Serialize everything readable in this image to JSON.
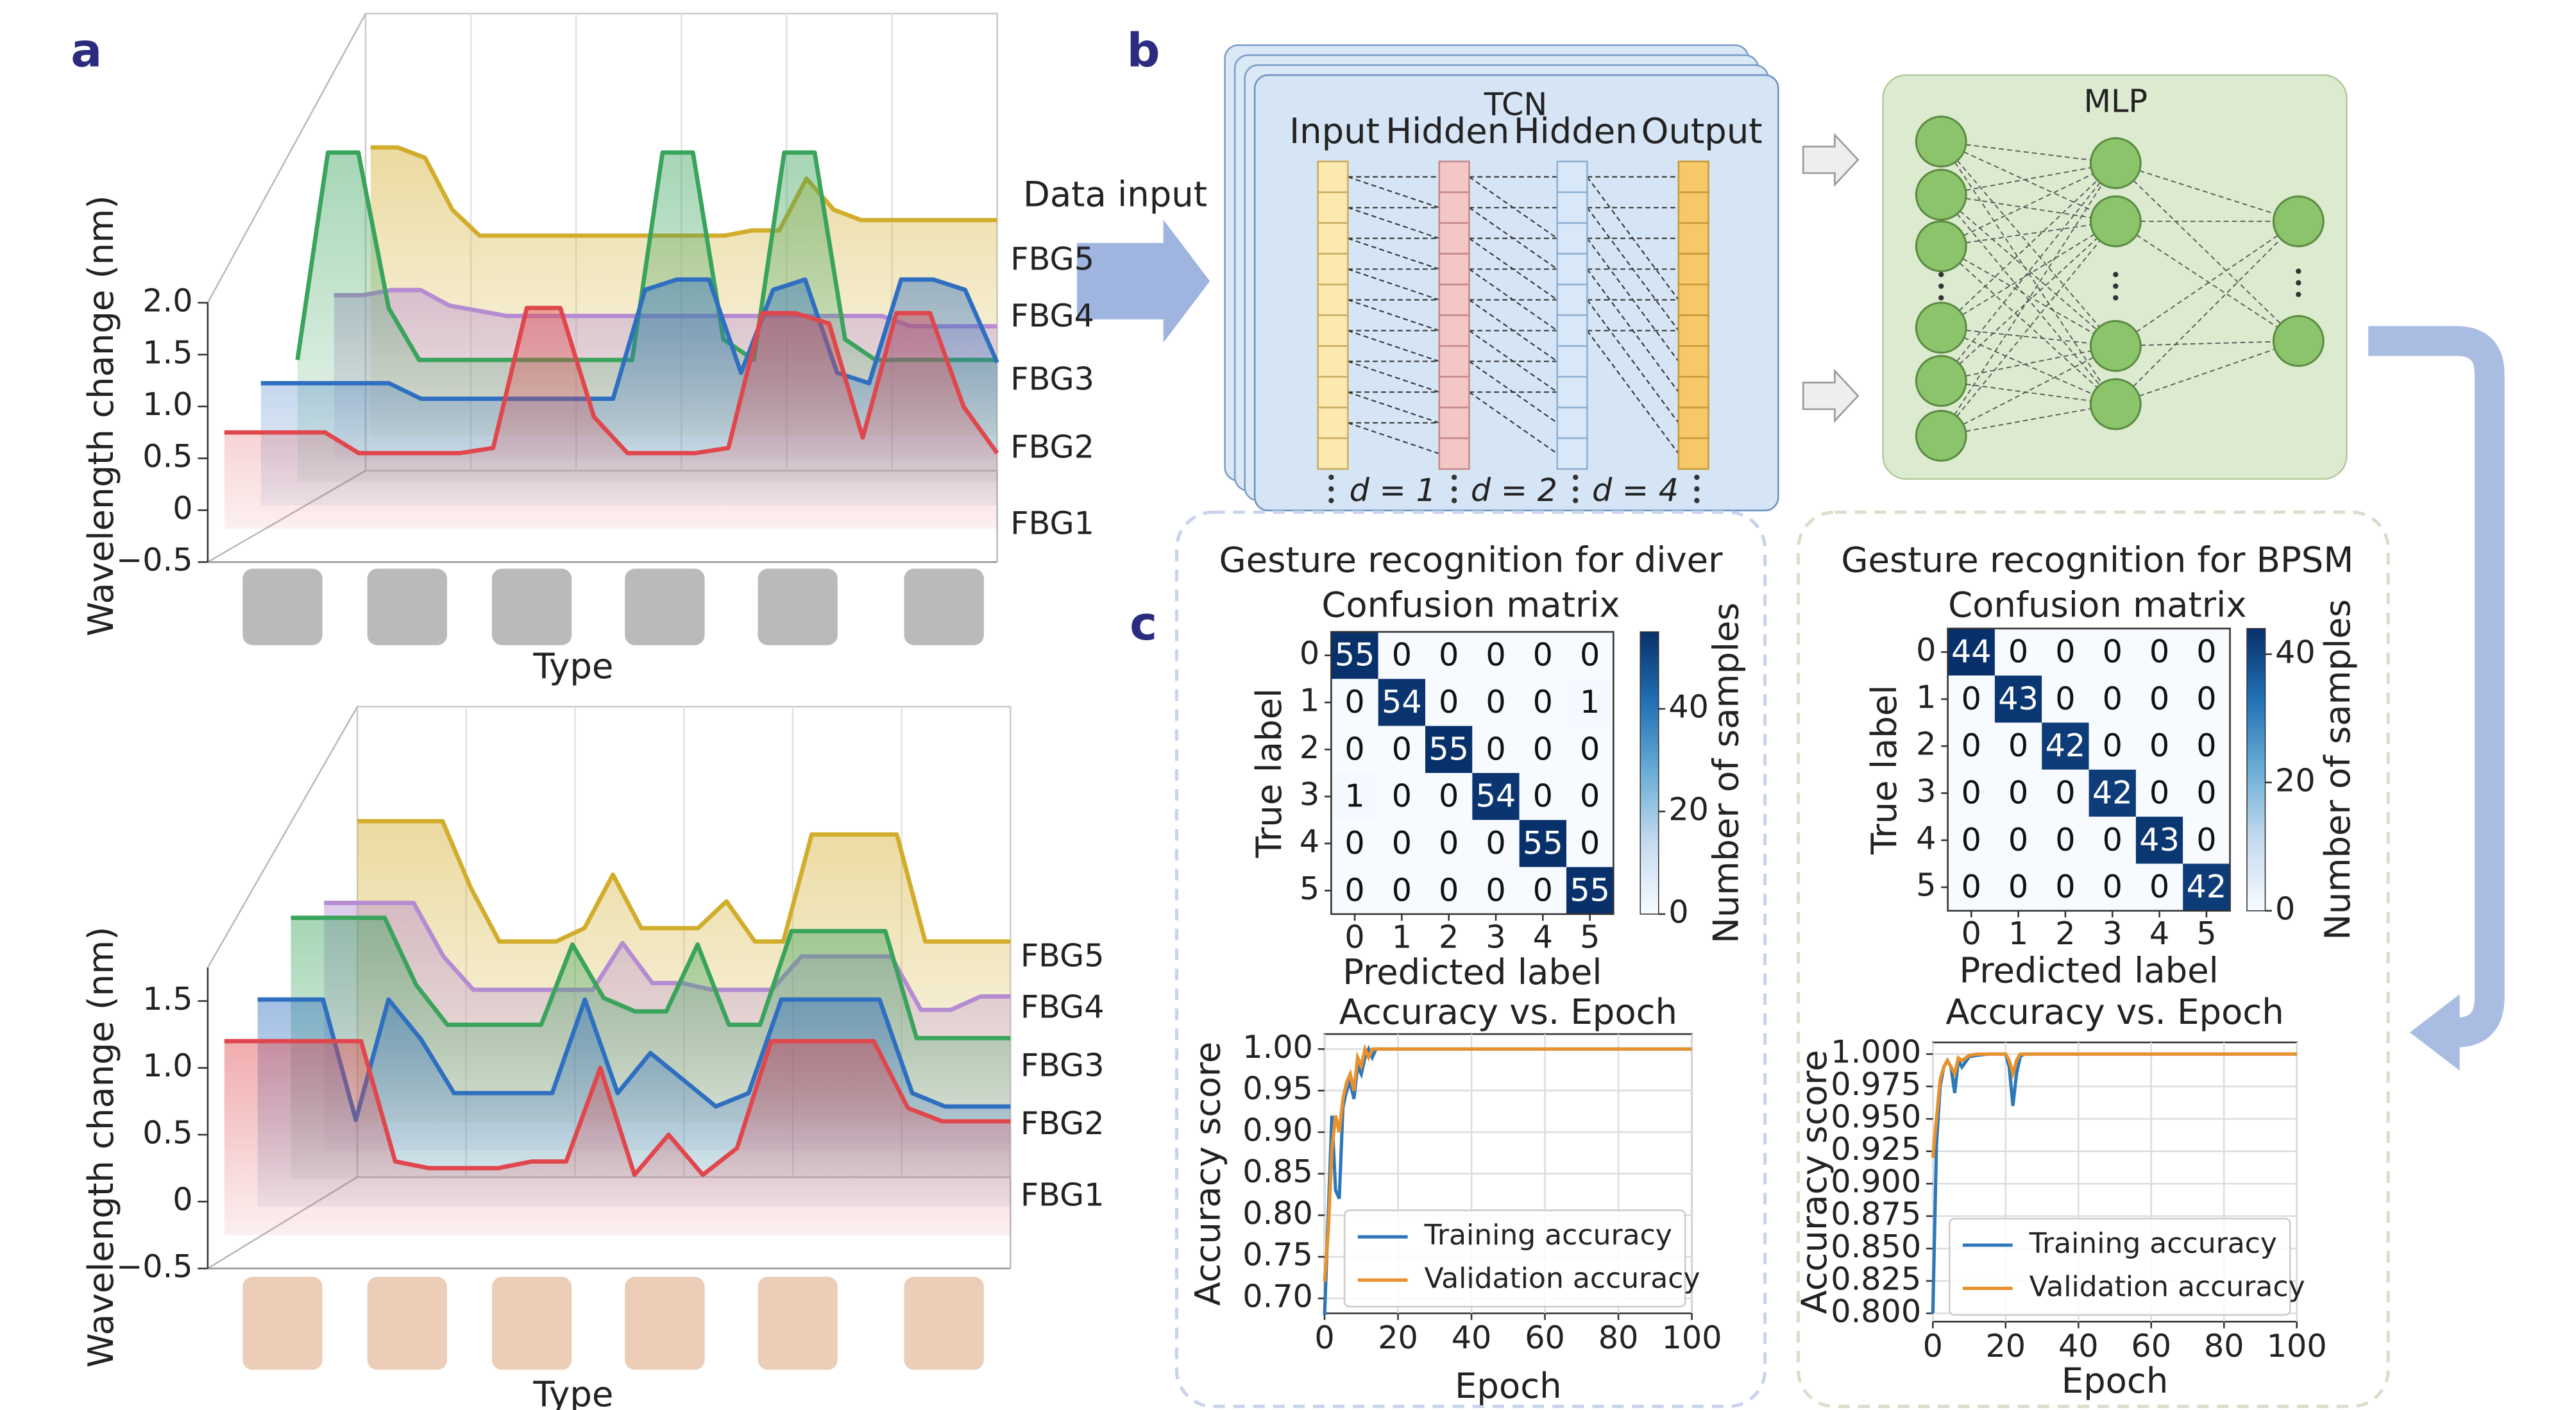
{
  "panel_labels": [
    "a",
    "b",
    "c"
  ],
  "diagram": {
    "data_input": "Data input",
    "tcn": {
      "title": "TCN",
      "layers": [
        "Input",
        "Hidden",
        "Hidden",
        "Output"
      ],
      "dilations": [
        "d = 1",
        "d = 2",
        "d = 4"
      ]
    },
    "mlp": {
      "title": "MLP"
    }
  },
  "chart_data": [
    {
      "type": "waterfall",
      "ylabel": "Wavelength change (nm)",
      "xlabel": "Type",
      "ylim": [
        -0.5,
        2.0
      ],
      "yticks": [
        {
          "value": -0.5,
          "label": "−0.5"
        },
        0,
        0.5,
        {
          "value": 1,
          "label": "1.0"
        },
        1.5,
        {
          "value": 2,
          "label": "2.0"
        }
      ],
      "series": [
        {
          "name": "FBG1",
          "color": "#e0474c",
          "values": [
            0.75,
            0.75,
            0.75,
            0.75,
            0.55,
            0.55,
            0.55,
            0.55,
            0.6,
            1.95,
            1.95,
            0.9,
            0.55,
            0.55,
            0.55,
            0.6,
            1.9,
            1.9,
            1.8,
            0.7,
            1.9,
            1.9,
            1.0,
            0.55
          ]
        },
        {
          "name": "FBG2",
          "color": "#2f6fc0",
          "values": [
            1.0,
            1.0,
            1.0,
            1.0,
            1.0,
            0.85,
            0.85,
            0.85,
            0.85,
            0.85,
            0.85,
            0.85,
            1.9,
            2.0,
            2.0,
            1.1,
            1.9,
            2.0,
            1.1,
            1.0,
            2.0,
            2.0,
            1.9,
            1.2
          ]
        },
        {
          "name": "FBG3",
          "color": "#3aa35c",
          "values": [
            1.0,
            3.0,
            3.0,
            1.5,
            1.0,
            1.0,
            1.0,
            1.0,
            1.0,
            1.0,
            1.0,
            1.0,
            3.0,
            3.0,
            1.2,
            1.0,
            3.0,
            3.0,
            1.2,
            1.0,
            1.0,
            1.0,
            1.0,
            1.0
          ]
        },
        {
          "name": "FBG4",
          "color": "#b58bd2",
          "values": [
            1.4,
            1.4,
            1.45,
            1.45,
            1.3,
            1.25,
            1.2,
            1.2,
            1.2,
            1.2,
            1.2,
            1.2,
            1.2,
            1.2,
            1.2,
            1.2,
            1.2,
            1.2,
            1.2,
            1.2,
            1.1,
            1.1,
            1.1,
            1.1
          ]
        },
        {
          "name": "FBG5",
          "color": "#d2ad2c",
          "values": [
            2.6,
            2.6,
            2.5,
            2.0,
            1.75,
            1.75,
            1.75,
            1.75,
            1.75,
            1.75,
            1.75,
            1.75,
            1.75,
            1.75,
            1.8,
            1.8,
            2.3,
            2.0,
            1.9,
            1.9,
            1.9,
            1.9,
            1.9,
            1.9
          ]
        }
      ]
    },
    {
      "type": "waterfall",
      "ylabel": "Wavelength change (nm)",
      "xlabel": "Type",
      "ylim": [
        -0.5,
        1.75
      ],
      "yticks": [
        {
          "value": -0.5,
          "label": "−0.5"
        },
        0,
        0.5,
        {
          "value": 1,
          "label": "1.0"
        },
        1.5
      ],
      "series": [
        {
          "name": "FBG1",
          "color": "#e0474c",
          "values": [
            1.2,
            1.2,
            1.2,
            1.2,
            1.2,
            0.3,
            0.25,
            0.25,
            0.25,
            0.3,
            0.3,
            1.0,
            0.2,
            0.5,
            0.2,
            0.4,
            1.2,
            1.2,
            1.2,
            1.2,
            0.7,
            0.6,
            0.6,
            0.6
          ]
        },
        {
          "name": "FBG2",
          "color": "#2f6fc0",
          "values": [
            1.3,
            1.3,
            1.3,
            0.4,
            1.3,
            1.0,
            0.6,
            0.6,
            0.6,
            0.6,
            1.3,
            0.6,
            0.9,
            0.7,
            0.5,
            0.6,
            1.3,
            1.3,
            1.3,
            1.3,
            0.6,
            0.5,
            0.5,
            0.5
          ]
        },
        {
          "name": "FBG3",
          "color": "#3aa35c",
          "values": [
            1.7,
            1.7,
            1.7,
            1.7,
            1.2,
            0.9,
            0.9,
            0.9,
            0.9,
            1.5,
            1.1,
            1.0,
            1.0,
            1.5,
            0.9,
            0.9,
            1.6,
            1.6,
            1.6,
            1.6,
            0.8,
            0.8,
            0.8,
            0.8
          ]
        },
        {
          "name": "FBG4",
          "color": "#b58bd2",
          "values": [
            1.6,
            1.6,
            1.6,
            1.6,
            1.2,
            0.95,
            0.95,
            0.95,
            0.95,
            0.95,
            1.3,
            1.0,
            1.0,
            0.95,
            0.95,
            0.95,
            1.2,
            1.2,
            1.2,
            1.2,
            0.8,
            0.8,
            0.9,
            0.9
          ]
        },
        {
          "name": "FBG5",
          "color": "#d2ad2c",
          "values": [
            2.0,
            2.0,
            2.0,
            2.0,
            1.5,
            1.1,
            1.1,
            1.1,
            1.2,
            1.6,
            1.2,
            1.2,
            1.2,
            1.4,
            1.1,
            1.1,
            1.9,
            1.9,
            1.9,
            1.9,
            1.1,
            1.1,
            1.1,
            1.1
          ]
        }
      ]
    },
    {
      "type": "heatmap",
      "title": "Gesture recognition for diver",
      "subtitle": "Confusion matrix",
      "xlabel": "Predicted label",
      "ylabel": "True label",
      "xticks": [
        0,
        1,
        2,
        3,
        4,
        5
      ],
      "yticks": [
        0,
        1,
        2,
        3,
        4,
        5
      ],
      "values": [
        [
          55,
          0,
          0,
          0,
          0,
          0
        ],
        [
          0,
          54,
          0,
          0,
          0,
          1
        ],
        [
          0,
          0,
          55,
          0,
          0,
          0
        ],
        [
          1,
          0,
          0,
          54,
          0,
          0
        ],
        [
          0,
          0,
          0,
          0,
          55,
          0
        ],
        [
          0,
          0,
          0,
          0,
          0,
          55
        ]
      ],
      "colormap": "Blues",
      "clim": [
        0,
        55
      ],
      "colorbar_label": "Number of samples",
      "colorbar_ticks": [
        0,
        20,
        40
      ]
    },
    {
      "type": "heatmap",
      "title": "Gesture recognition for BPSM",
      "subtitle": "Confusion matrix",
      "xlabel": "Predicted label",
      "ylabel": "True label",
      "xticks": [
        0,
        1,
        2,
        3,
        4,
        5
      ],
      "yticks": [
        0,
        1,
        2,
        3,
        4,
        5
      ],
      "values": [
        [
          44,
          0,
          0,
          0,
          0,
          0
        ],
        [
          0,
          43,
          0,
          0,
          0,
          0
        ],
        [
          0,
          0,
          42,
          0,
          0,
          0
        ],
        [
          0,
          0,
          0,
          42,
          0,
          0
        ],
        [
          0,
          0,
          0,
          0,
          43,
          0
        ],
        [
          0,
          0,
          0,
          0,
          0,
          42
        ]
      ],
      "colormap": "Blues",
      "clim": [
        0,
        44
      ],
      "colorbar_label": "Number of samples",
      "colorbar_ticks": [
        0,
        20,
        40
      ]
    },
    {
      "type": "line",
      "title": "Accuracy vs. Epoch",
      "xlabel": "Epoch",
      "ylabel": "Accuracy score",
      "xlim": [
        0,
        100
      ],
      "xticks": [
        0,
        20,
        40,
        60,
        80,
        100
      ],
      "ylim": [
        0.682,
        1.018
      ],
      "yticks": [
        {
          "value": 0.7,
          "label": "0.70"
        },
        0.75,
        {
          "value": 0.8,
          "label": "0.80"
        },
        0.85,
        {
          "value": 0.9,
          "label": "0.90"
        },
        0.95,
        {
          "value": 1,
          "label": "1.00"
        }
      ],
      "grid": true,
      "legend": "lower right",
      "x": [
        0,
        1,
        2,
        3,
        4,
        5,
        6,
        7,
        8,
        9,
        10,
        11,
        12,
        13,
        14,
        15,
        20,
        30,
        40,
        50,
        60,
        70,
        80,
        90,
        100
      ],
      "series": [
        {
          "name": "Training accuracy",
          "color": "#2e78b8",
          "values": [
            0.68,
            0.8,
            0.92,
            0.83,
            0.82,
            0.93,
            0.95,
            0.96,
            0.94,
            0.98,
            0.97,
            0.99,
            1.0,
            0.99,
            1.0,
            1.0,
            1.0,
            1.0,
            1.0,
            1.0,
            1.0,
            1.0,
            1.0,
            1.0,
            1.0
          ]
        },
        {
          "name": "Validation accuracy",
          "color": "#e8912d",
          "values": [
            0.72,
            0.78,
            0.88,
            0.92,
            0.9,
            0.94,
            0.96,
            0.97,
            0.95,
            0.99,
            0.98,
            1.0,
            0.99,
            1.0,
            1.0,
            1.0,
            1.0,
            1.0,
            1.0,
            1.0,
            1.0,
            1.0,
            1.0,
            1.0,
            1.0
          ]
        }
      ]
    },
    {
      "type": "line",
      "title": "Accuracy vs. Epoch",
      "xlabel": "Epoch",
      "ylabel": "Accuracy score",
      "xlim": [
        0,
        100
      ],
      "xticks": [
        0,
        20,
        40,
        60,
        80,
        100
      ],
      "ylim": [
        0.7936,
        1.009
      ],
      "yticks": [
        {
          "value": 0.8,
          "label": "0.800"
        },
        0.825,
        {
          "value": 0.85,
          "label": "0.850"
        },
        0.875,
        {
          "value": 0.9,
          "label": "0.900"
        },
        0.925,
        {
          "value": 0.95,
          "label": "0.950"
        },
        0.975,
        {
          "value": 1,
          "label": "1.000"
        }
      ],
      "grid": true,
      "legend": "lower right",
      "x": [
        0,
        1,
        2,
        3,
        4,
        5,
        6,
        7,
        8,
        10,
        12,
        15,
        20,
        21,
        22,
        23,
        24,
        25,
        30,
        40,
        50,
        60,
        70,
        80,
        90,
        100
      ],
      "series": [
        {
          "name": "Training accuracy",
          "color": "#2e78b8",
          "values": [
            0.8,
            0.93,
            0.975,
            0.99,
            0.995,
            0.99,
            0.97,
            0.995,
            0.99,
            0.998,
            0.999,
            1.0,
            1.0,
            0.99,
            0.96,
            0.985,
            0.998,
            1.0,
            1.0,
            1.0,
            1.0,
            1.0,
            1.0,
            1.0,
            1.0,
            1.0
          ]
        },
        {
          "name": "Validation accuracy",
          "color": "#e8912d",
          "values": [
            0.92,
            0.95,
            0.98,
            0.99,
            0.995,
            0.99,
            0.985,
            0.997,
            0.995,
            0.999,
            1.0,
            1.0,
            1.0,
            0.995,
            0.985,
            0.995,
            1.0,
            1.0,
            1.0,
            1.0,
            1.0,
            1.0,
            1.0,
            1.0,
            1.0,
            1.0
          ]
        }
      ]
    }
  ]
}
